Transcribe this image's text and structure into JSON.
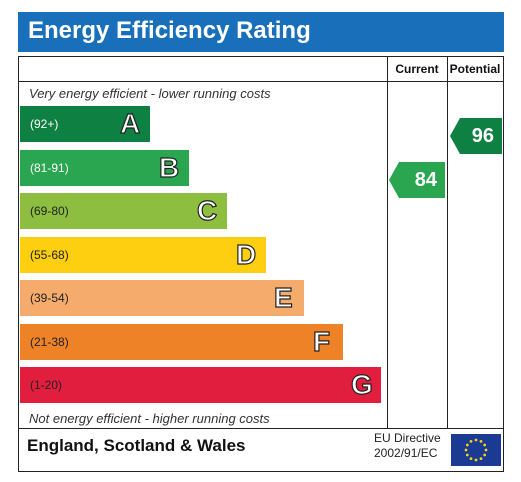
{
  "header": {
    "title": "Energy Efficiency Rating"
  },
  "columns": {
    "current": "Current",
    "potential": "Potential"
  },
  "captions": {
    "top": "Very energy efficient - lower running costs",
    "bottom": "Not energy efficient - higher running costs"
  },
  "footer": {
    "region": "England, Scotland & Wales",
    "directive_line1": "EU Directive",
    "directive_line2": "2002/91/EC"
  },
  "colors": {
    "title_bar": "#1a6fba",
    "flag": "#1b3a93",
    "star": "#f7d117"
  },
  "chart_data": {
    "type": "bar",
    "title": "Energy Efficiency Rating",
    "bands": [
      {
        "letter": "A",
        "range": "(92+)",
        "color": "#0e8041",
        "range_color": "#ffffff"
      },
      {
        "letter": "B",
        "range": "(81-91)",
        "color": "#2aa651",
        "range_color": "#ffffff"
      },
      {
        "letter": "C",
        "range": "(69-80)",
        "color": "#8ebe3f",
        "range_color": "#222222"
      },
      {
        "letter": "D",
        "range": "(55-68)",
        "color": "#fecf10",
        "range_color": "#222222"
      },
      {
        "letter": "E",
        "range": "(39-54)",
        "color": "#f5ab6c",
        "range_color": "#222222"
      },
      {
        "letter": "F",
        "range": "(21-38)",
        "color": "#ee8227",
        "range_color": "#222222"
      },
      {
        "letter": "G",
        "range": "(1-20)",
        "color": "#e21e3e",
        "range_color": "#222222"
      }
    ],
    "ratings": [
      {
        "name": "Current",
        "value": 84,
        "band": "B",
        "color": "#2aa651"
      },
      {
        "name": "Potential",
        "value": 96,
        "band": "A",
        "color": "#0e8041"
      }
    ]
  }
}
